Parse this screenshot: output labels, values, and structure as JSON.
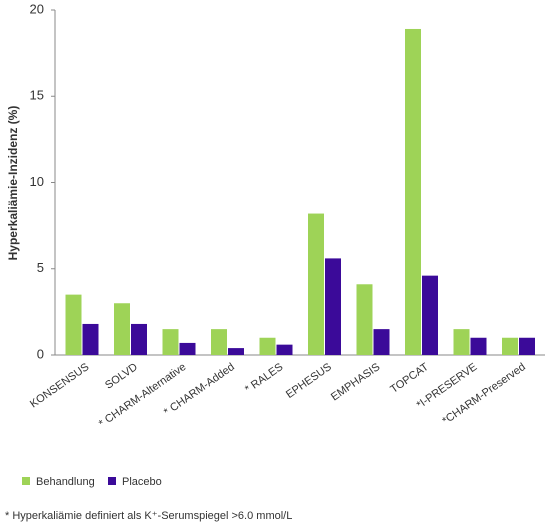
{
  "chart_data": {
    "type": "bar",
    "y_label": "Hyperkaliämie-Inzidenz (%)",
    "categories": [
      "KONSENSUS",
      "SOLVD",
      "* CHARM-Alternative",
      "* CHARM-Added",
      "* RALES",
      "EPHESUS",
      "EMPHASIS",
      "TOPCAT",
      "*I-PRESERVE",
      "*CHARM-Preserved"
    ],
    "series": [
      {
        "name": "Behandlung",
        "color": "#9ed357",
        "values": [
          3.5,
          3.0,
          1.5,
          1.5,
          1.0,
          8.2,
          4.1,
          18.9,
          1.5,
          1.0
        ]
      },
      {
        "name": "Placebo",
        "color": "#3b0a99",
        "values": [
          1.8,
          1.8,
          0.7,
          0.4,
          0.6,
          5.6,
          1.5,
          4.6,
          1.0,
          1.0
        ]
      }
    ],
    "ylim": [
      0,
      20
    ],
    "yticks": [
      0,
      5,
      10,
      15,
      20
    ],
    "grid": false,
    "legend": "bottom-left",
    "footnote": "* Hyperkaliämie definiert als K⁺-Serumspiegel >6.0 mmol/L"
  }
}
